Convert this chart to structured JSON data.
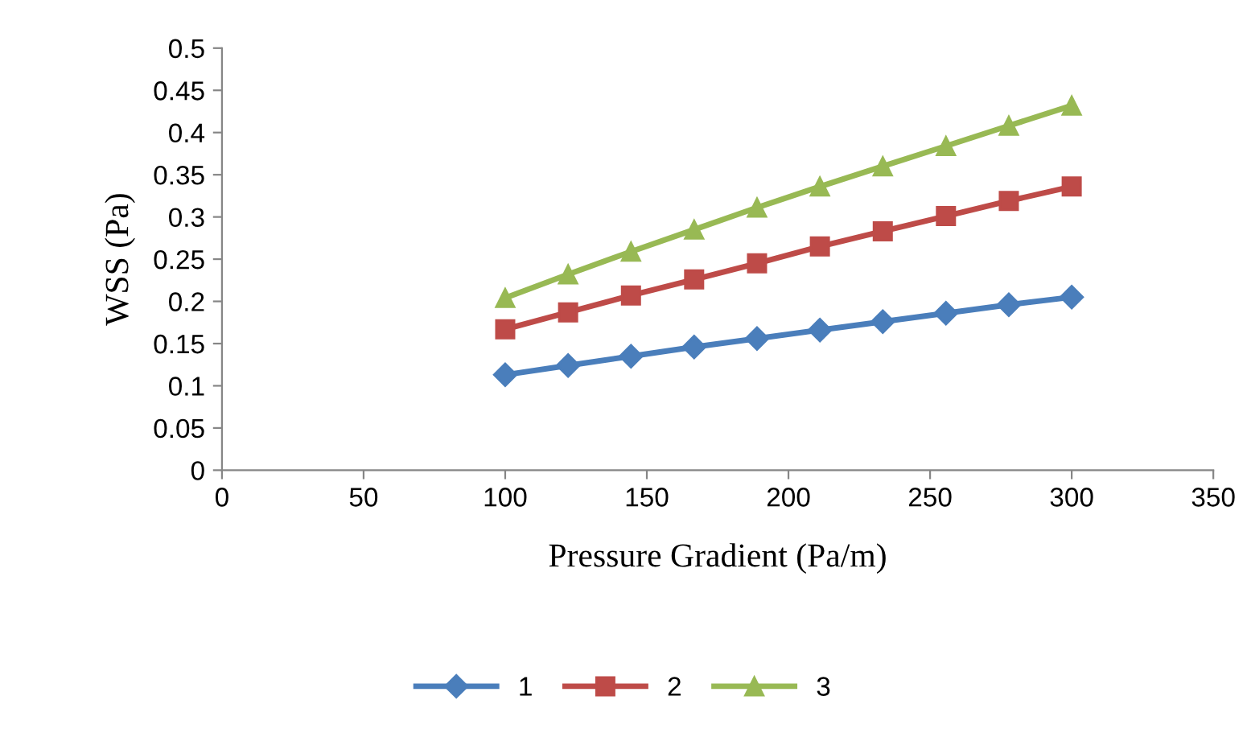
{
  "chart_data": {
    "type": "line",
    "xlabel": "Pressure Gradient (Pa/m)",
    "ylabel": "WSS (Pa)",
    "x": [
      100,
      122.2,
      144.4,
      166.7,
      188.9,
      211.1,
      233.3,
      255.6,
      277.8,
      300
    ],
    "series": [
      {
        "name": "1",
        "color": "#4a7ebb",
        "marker": "diamond",
        "values": [
          0.113,
          0.124,
          0.135,
          0.146,
          0.156,
          0.166,
          0.176,
          0.186,
          0.196,
          0.205
        ]
      },
      {
        "name": "2",
        "color": "#be4b48",
        "marker": "square",
        "values": [
          0.167,
          0.187,
          0.207,
          0.226,
          0.245,
          0.265,
          0.283,
          0.301,
          0.319,
          0.336
        ]
      },
      {
        "name": "3",
        "color": "#98b954",
        "marker": "triangle",
        "values": [
          0.204,
          0.232,
          0.259,
          0.285,
          0.311,
          0.336,
          0.36,
          0.384,
          0.408,
          0.432
        ]
      }
    ],
    "xlim": [
      0,
      350
    ],
    "xticks": [
      0,
      50,
      100,
      150,
      200,
      250,
      300,
      350
    ],
    "ylim": [
      0,
      0.5
    ],
    "yticks": [
      {
        "value": 0,
        "label": "0"
      },
      0.05,
      0.1,
      0.15,
      0.2,
      0.25,
      0.3,
      0.35,
      0.4,
      0.45,
      0.5
    ],
    "grid": false,
    "legend": "bottom",
    "line_style": "solid"
  }
}
